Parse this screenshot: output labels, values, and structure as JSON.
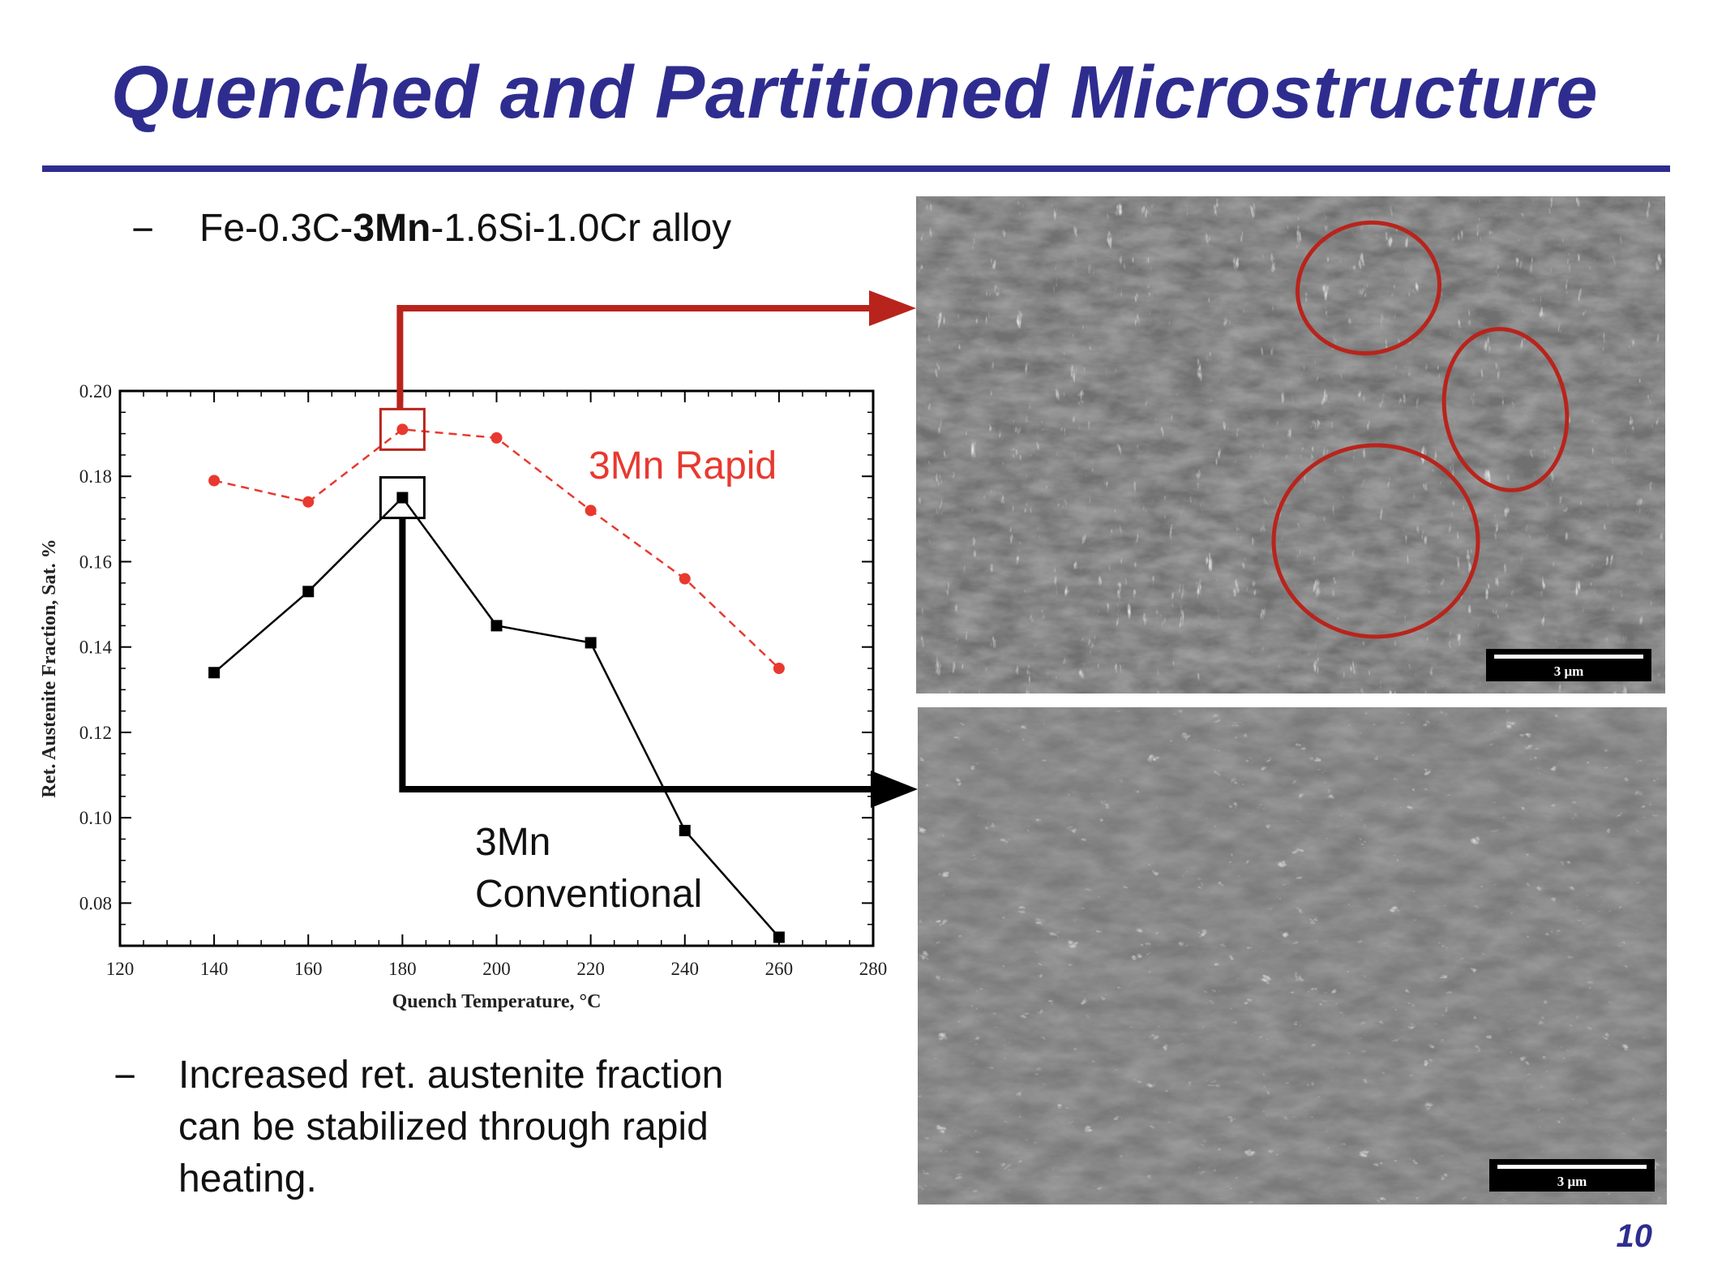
{
  "slide": {
    "title": "Quenched and Partitioned Microstructure",
    "page_number": "10"
  },
  "bullets": [
    {
      "dash": "−",
      "parts": [
        "Fe-0.3C-",
        "3Mn",
        "-1.6Si-1.0Cr alloy"
      ]
    },
    {
      "dash": "−",
      "lines": [
        "Increased ret. austenite fraction",
        "can be stabilized through rapid",
        "heating."
      ]
    }
  ],
  "annotations": {
    "rapid_label": "3Mn Rapid",
    "conventional_label_line1": "3Mn",
    "conventional_label_line2": "Conventional"
  },
  "images": {
    "top_scale": "3 μm",
    "bottom_scale": "3 μm"
  },
  "colors": {
    "title": "#2e2d8f",
    "rapid": "#e8392f",
    "arrow_red": "#b8241c",
    "conventional": "#000000"
  },
  "chart_data": {
    "type": "line",
    "xlabel": "Quench Temperature, °C",
    "ylabel": "Ret. Austenite Fraction, Sat. %",
    "xlim": [
      120,
      280
    ],
    "ylim": [
      0.07,
      0.2
    ],
    "x_ticks": [
      "120",
      "140",
      "160",
      "180",
      "200",
      "220",
      "240",
      "260",
      "280"
    ],
    "y_ticks": [
      "0.08",
      "0.10",
      "0.12",
      "0.14",
      "0.16",
      "0.18",
      "0.20"
    ],
    "series": [
      {
        "name": "3Mn Rapid",
        "style": "dashed",
        "marker": "circle",
        "color": "#e8392f",
        "x": [
          140,
          160,
          180,
          200,
          220,
          240,
          260
        ],
        "y": [
          0.179,
          0.174,
          0.191,
          0.189,
          0.172,
          0.156,
          0.135
        ]
      },
      {
        "name": "3Mn Conventional",
        "style": "solid",
        "marker": "square",
        "color": "#000000",
        "x": [
          140,
          160,
          180,
          200,
          220,
          240,
          260
        ],
        "y": [
          0.134,
          0.153,
          0.175,
          0.145,
          0.141,
          0.097,
          0.072
        ]
      }
    ]
  }
}
